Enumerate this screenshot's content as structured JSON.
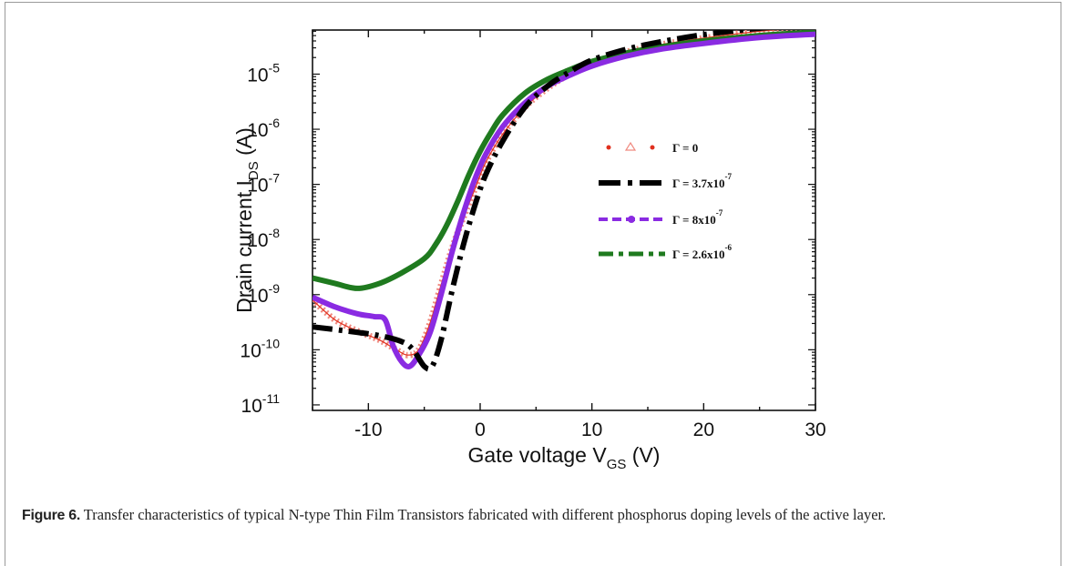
{
  "figure": {
    "caption_label": "Figure 6.",
    "caption_text": " Transfer characteristics of typical N-type Thin Film Transistors fabricated with different phosphorus doping levels of the active layer."
  },
  "chart_data": {
    "type": "line",
    "xlabel": "Gate voltage V",
    "xlabel_sub": "GS",
    "xlabel_unit": " (V)",
    "ylabel": "Drain current I",
    "ylabel_sub": "DS",
    "ylabel_unit": " (A)",
    "xlim": [
      -15,
      30
    ],
    "ylim_log10": [
      -11.1,
      -4.2
    ],
    "yscale": "log",
    "x_ticks": [
      "-10",
      "0",
      "10",
      "20",
      "30"
    ],
    "x_tick_values": [
      -10,
      0,
      10,
      20,
      30
    ],
    "y_tick_exponents": [
      -11,
      -10,
      -9,
      -8,
      -7,
      -6,
      -5
    ],
    "y_tick_base": "10",
    "legend_position": "center-right",
    "series": [
      {
        "name": "Γ = 0",
        "legend_prefix": "Γ = ",
        "legend_value": "0",
        "legend_exp": "",
        "color": "#e0301e",
        "marker_color": "#f08a80",
        "style": "triangle-markers",
        "x": [
          -15,
          -13,
          -11,
          -9,
          -7.5,
          -6.5,
          -5.5,
          -4.5,
          -3.5,
          -2.5,
          -1.5,
          -0.5,
          0.5,
          2,
          4,
          6,
          8,
          10,
          13,
          16,
          20,
          25,
          30
        ],
        "y": [
          8e-10,
          3.5e-10,
          2.2e-10,
          1.5e-10,
          1e-10,
          8e-11,
          1e-10,
          3e-10,
          1.5e-09,
          7e-09,
          2.5e-08,
          8e-08,
          2.5e-07,
          8e-07,
          2.5e-06,
          5.5e-06,
          1e-05,
          1.6e-05,
          2.5e-05,
          3.4e-05,
          4.5e-05,
          6e-05,
          7.2e-05
        ]
      },
      {
        "name": "Γ = 3.7x10-7",
        "legend_prefix": "Γ = ",
        "legend_value": "3.7x10",
        "legend_exp": "-7",
        "color": "#000000",
        "style": "dash-dot-thick",
        "x": [
          -15,
          -12,
          -9,
          -7,
          -6,
          -5,
          -4.3,
          -3.5,
          -2.5,
          -1.5,
          -0.5,
          0.5,
          2,
          4,
          6,
          8,
          10,
          13,
          16,
          20,
          25,
          30
        ],
        "y": [
          2.6e-10,
          2.2e-10,
          1.8e-10,
          1.4e-10,
          1e-10,
          5e-11,
          5e-11,
          1.5e-10,
          1.2e-09,
          8e-09,
          4e-08,
          1.5e-07,
          6e-07,
          2.5e-06,
          6e-06,
          1.1e-05,
          1.8e-05,
          2.8e-05,
          3.8e-05,
          5.2e-05,
          6.8e-05,
          8e-05
        ]
      },
      {
        "name": "Γ = 8x10-7",
        "legend_prefix": "Γ = ",
        "legend_value": "8x10",
        "legend_exp": "-7",
        "color": "#8a2be2",
        "style": "solid-thick",
        "x": [
          -15,
          -13,
          -11,
          -9.5,
          -8.5,
          -7.8,
          -7,
          -6.3,
          -5.5,
          -4.5,
          -3.5,
          -2.5,
          -1.5,
          -0.5,
          0.5,
          2,
          4,
          6,
          8,
          10,
          13,
          16,
          20,
          25,
          30
        ],
        "y": [
          9e-10,
          6e-10,
          4.5e-10,
          4e-10,
          3.5e-10,
          1.2e-10,
          6e-11,
          5e-11,
          8e-11,
          2e-10,
          1e-09,
          6e-09,
          3e-08,
          1.2e-07,
          3.5e-07,
          1.1e-06,
          3e-06,
          6e-06,
          9.5e-06,
          1.4e-05,
          2.1e-05,
          2.8e-05,
          3.6e-05,
          4.6e-05,
          5.3e-05
        ]
      },
      {
        "name": "Γ = 2.6x10-6",
        "legend_prefix": "Γ = ",
        "legend_value": "2.6x10",
        "legend_exp": "-6",
        "color": "#1f7a1f",
        "style": "solid-thick",
        "x": [
          -15,
          -13,
          -11,
          -9,
          -7,
          -5,
          -4,
          -3,
          -2,
          -1,
          0,
          1,
          2,
          4,
          6,
          8,
          10,
          13,
          16,
          20,
          25,
          30
        ],
        "y": [
          2e-09,
          1.6e-09,
          1.3e-09,
          1.6e-09,
          2.5e-09,
          4.5e-09,
          8e-09,
          1.8e-08,
          5e-08,
          1.5e-07,
          4e-07,
          9e-07,
          1.8e-06,
          4.5e-06,
          8e-06,
          1.2e-05,
          1.7e-05,
          2.4e-05,
          3.1e-05,
          4e-05,
          5e-05,
          5.8e-05
        ]
      }
    ]
  }
}
